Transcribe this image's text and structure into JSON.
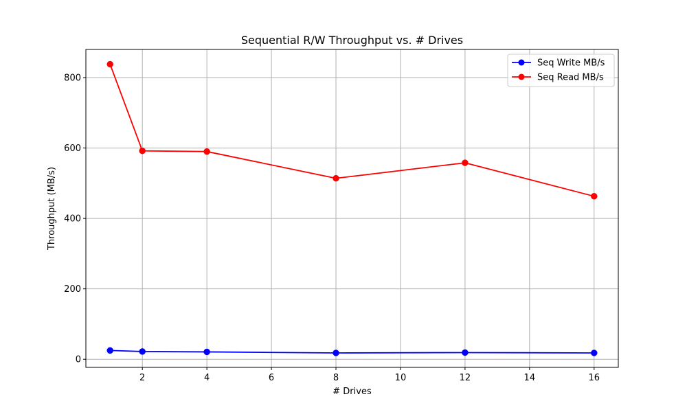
{
  "chart_data": {
    "type": "line",
    "title": "Sequential R/W Throughput vs. # Drives",
    "xlabel": "# Drives",
    "ylabel": "Throughput (MB/s)",
    "x": [
      1,
      2,
      4,
      8,
      12,
      16
    ],
    "xlim": [
      0.25,
      16.75
    ],
    "ylim": [
      -23,
      880
    ],
    "xticks": [
      2,
      4,
      6,
      8,
      10,
      12,
      14,
      16
    ],
    "yticks": [
      0,
      200,
      400,
      600,
      800
    ],
    "grid": true,
    "legend_position": "top-right",
    "series": [
      {
        "name": "Seq Write MB/s",
        "color": "#0000ff",
        "marker": "circle",
        "values": [
          25,
          22,
          21,
          18,
          19,
          18
        ]
      },
      {
        "name": "Seq Read MB/s",
        "color": "#ff0000",
        "marker": "circle",
        "values": [
          838,
          592,
          590,
          514,
          558,
          463
        ]
      }
    ]
  }
}
